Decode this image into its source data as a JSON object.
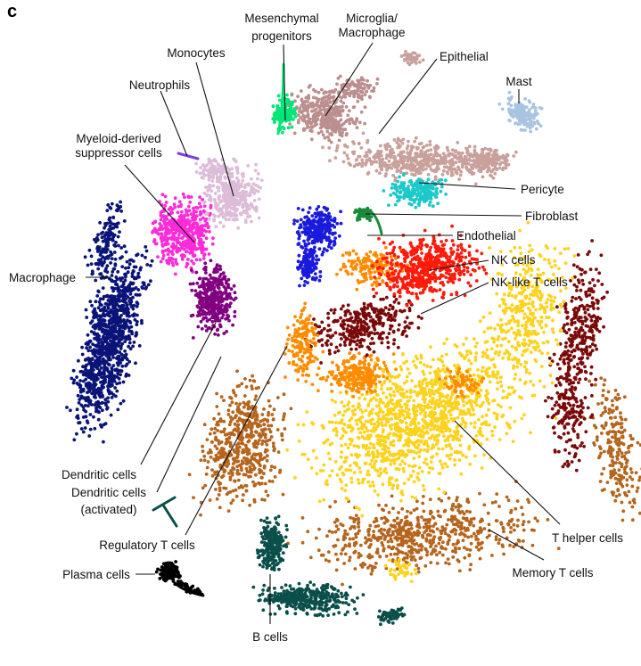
{
  "figure": {
    "panel_letter": "c",
    "plot_type": "tSNE cluster map of cell types"
  },
  "clusters": [
    {
      "key": "mesenchymal",
      "color": "#00e676"
    },
    {
      "key": "microglia",
      "color": "#bc8f8f"
    },
    {
      "key": "epithelial",
      "color": "#c9a19c"
    },
    {
      "key": "mast",
      "color": "#a9c4e0"
    },
    {
      "key": "monocytes",
      "color": "#dcbcd8"
    },
    {
      "key": "neutrophils",
      "color": "#7b3fe4"
    },
    {
      "key": "mdsc",
      "color": "#ff2bd9"
    },
    {
      "key": "pericyte",
      "color": "#1ec8c8"
    },
    {
      "key": "fibroblast",
      "color": "#1a8a3a"
    },
    {
      "key": "endothelial",
      "color": "#1a1adc"
    },
    {
      "key": "nk",
      "color": "#ff1a0a"
    },
    {
      "key": "nklike",
      "color": "#7a0a0a"
    },
    {
      "key": "macrophage",
      "color": "#0a1478"
    },
    {
      "key": "dendritic",
      "color": "#800080"
    },
    {
      "key": "thelper",
      "color": "#ffd21e"
    },
    {
      "key": "treg",
      "color": "#ff8c00"
    },
    {
      "key": "memory",
      "color": "#b5651d"
    },
    {
      "key": "bcells",
      "color": "#0b4f4a"
    },
    {
      "key": "plasma",
      "color": "#000000"
    }
  ],
  "labels": {
    "mesenchymal_1": "Mesenchymal",
    "mesenchymal_2": "progenitors",
    "microglia_1": "Microglia/",
    "microglia_2": "Macrophage",
    "epithelial": "Epithelial",
    "mast": "Mast",
    "monocytes": "Monocytes",
    "neutrophils": "Neutrophils",
    "mdsc_1": "Myeloid-derived",
    "mdsc_2": "suppressor cells",
    "pericyte": "Pericyte",
    "fibroblast": "Fibroblast",
    "endothelial": "Endothelial",
    "nk": "NK cells",
    "nklike": "NK-like T cells",
    "macrophage": "Macrophage",
    "dendritic": "Dendritic cells",
    "dendritic_act_1": "Dendritic cells",
    "dendritic_act_2": "(activated)",
    "treg": "Regulatory T cells",
    "plasma": "Plasma cells",
    "thelper": "T helper cells",
    "memory": "Memory T cells",
    "bcells": "B cells"
  }
}
